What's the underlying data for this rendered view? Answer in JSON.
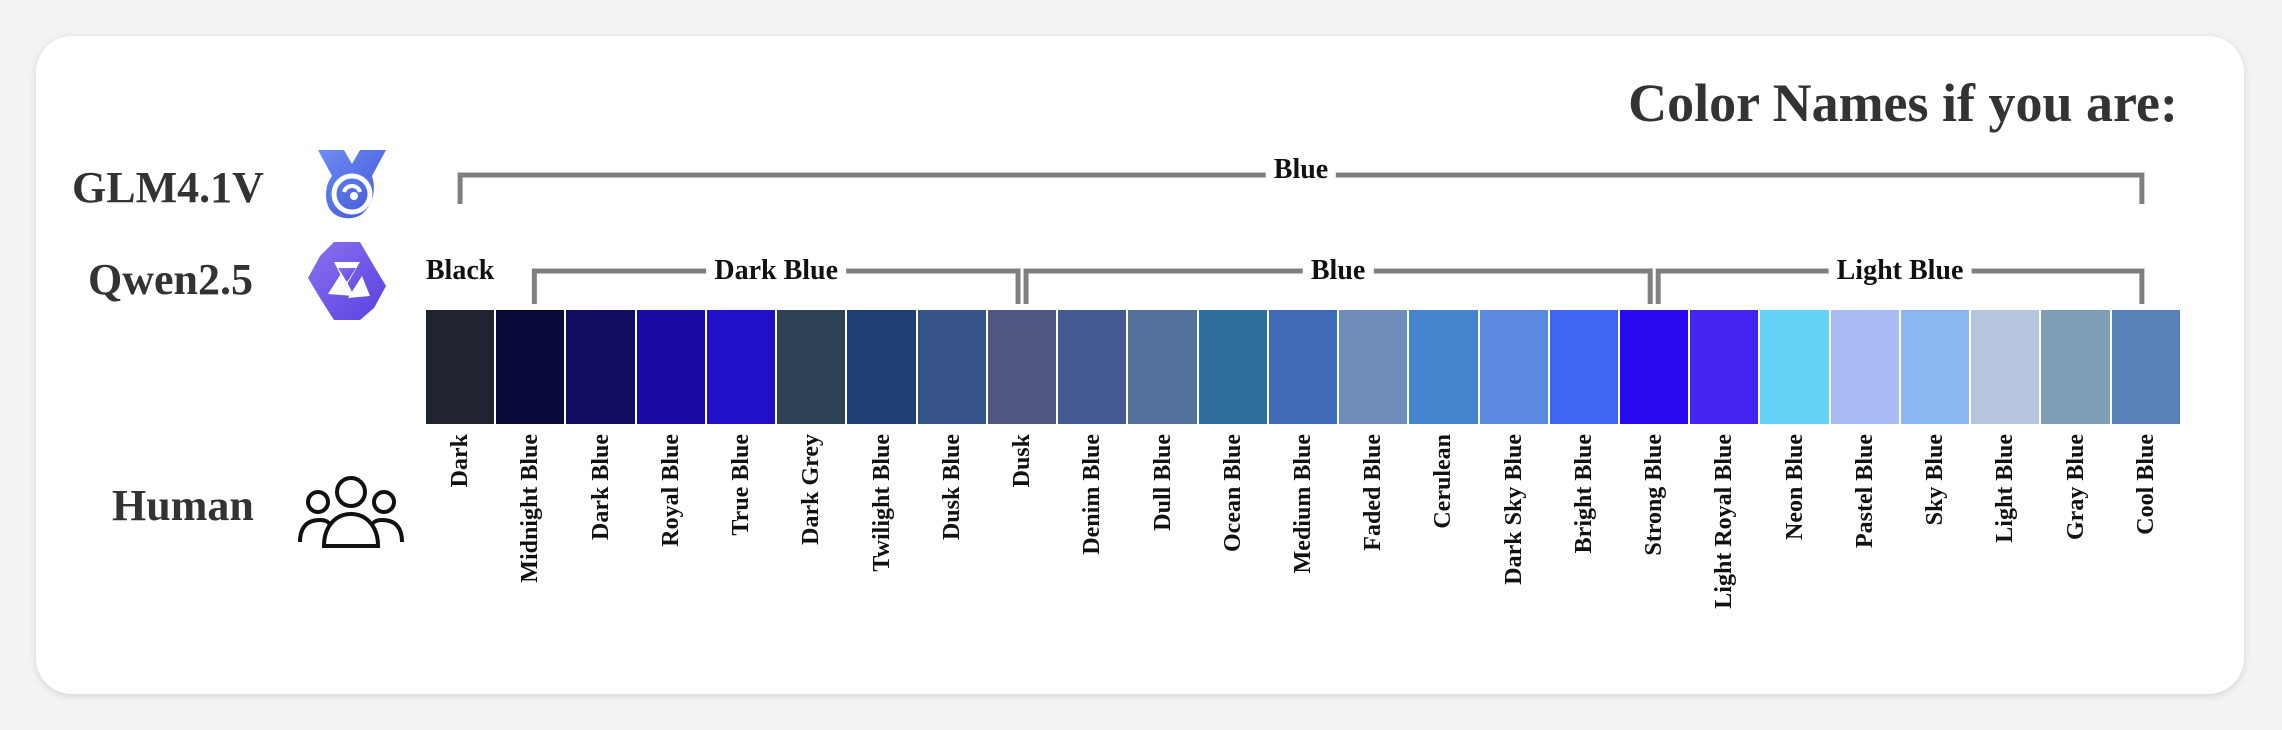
{
  "title": "Color Names if you are:",
  "rows": {
    "glm": "GLM4.1V",
    "qwen": "Qwen2.5",
    "human": "Human"
  },
  "icons": {
    "glm": "glm-logo-icon",
    "qwen": "qwen-logo-icon",
    "human": "people-group-icon"
  },
  "glm_groups": [
    {
      "label": "Blue",
      "from": 0,
      "to": 24
    }
  ],
  "qwen_groups": [
    {
      "label": "Black",
      "from": 0,
      "to": 0
    },
    {
      "label": "Dark Blue",
      "from": 1,
      "to": 8
    },
    {
      "label": "Blue",
      "from": 8,
      "to": 17
    },
    {
      "label": "Light Blue",
      "from": 17,
      "to": 24
    }
  ],
  "swatches": [
    {
      "name": "Dark",
      "color": "#1f2430"
    },
    {
      "name": "Midnight Blue",
      "color": "#0a0a3a"
    },
    {
      "name": "Dark Blue",
      "color": "#120d60"
    },
    {
      "name": "Royal Blue",
      "color": "#1a0aa6"
    },
    {
      "name": "True Blue",
      "color": "#2210c8"
    },
    {
      "name": "Dark Grey",
      "color": "#2f4356"
    },
    {
      "name": "Twilight Blue",
      "color": "#1f3f75"
    },
    {
      "name": "Dusk Blue",
      "color": "#37548a"
    },
    {
      "name": "Dusk",
      "color": "#515582"
    },
    {
      "name": "Denim Blue",
      "color": "#44598f"
    },
    {
      "name": "Dull Blue",
      "color": "#52729b"
    },
    {
      "name": "Ocean Blue",
      "color": "#2f6e9c"
    },
    {
      "name": "Medium Blue",
      "color": "#3f6ab8"
    },
    {
      "name": "Faded Blue",
      "color": "#6f8db8"
    },
    {
      "name": "Cerulean",
      "color": "#4584cf"
    },
    {
      "name": "Dark Sky Blue",
      "color": "#5c8ae0"
    },
    {
      "name": "Bright Blue",
      "color": "#3f66f2"
    },
    {
      "name": "Strong Blue",
      "color": "#2a0af0"
    },
    {
      "name": "Light Royal Blue",
      "color": "#4324f0"
    },
    {
      "name": "Neon Blue",
      "color": "#63d4f7"
    },
    {
      "name": "Pastel Blue",
      "color": "#a9bbf4"
    },
    {
      "name": "Sky Blue",
      "color": "#8bb6f2"
    },
    {
      "name": "Light Blue",
      "color": "#b7c4de"
    },
    {
      "name": "Gray Blue",
      "color": "#7f9fb6"
    },
    {
      "name": "Cool Blue",
      "color": "#5882b7"
    }
  ]
}
